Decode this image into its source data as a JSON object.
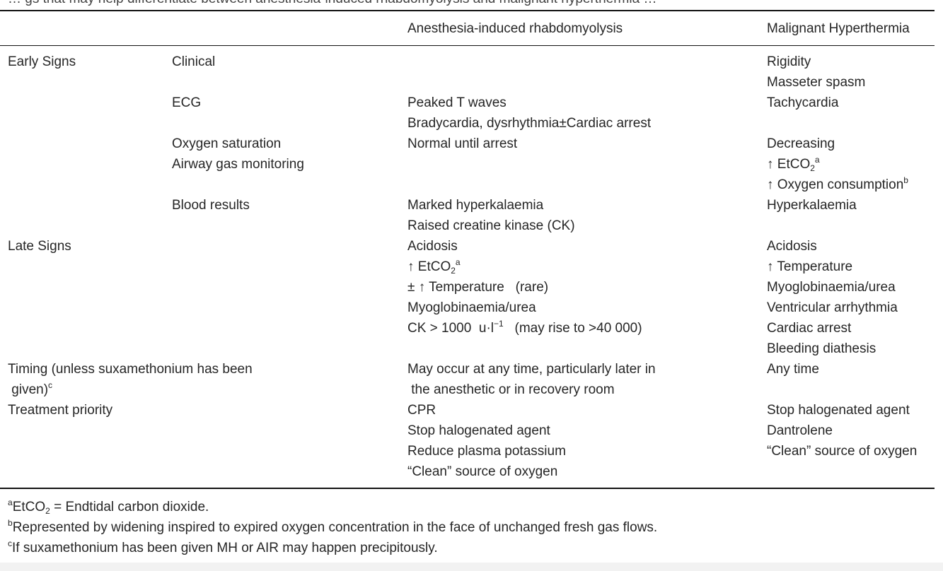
{
  "caption_fragment": "… gs that may help differentiate between anesthesia-induced rhabdomyolysis and malignant hyperthermia …",
  "headers": {
    "col3": "Anesthesia-induced rhabdomyolysis",
    "col4": "Malignant Hyperthermia"
  },
  "rows": {
    "early_signs": "Early Signs",
    "clinical": "Clinical",
    "clinical_mh": [
      "Rigidity",
      "Masseter spasm"
    ],
    "ecg": "ECG",
    "ecg_air": [
      "Peaked T waves",
      "Bradycardia, dysrhythmia±Cardiac arrest"
    ],
    "ecg_mh": "Tachycardia",
    "oxygen_saturation": "Oxygen saturation",
    "oxygen_saturation_air": "Normal until arrest",
    "oxygen_saturation_mh": "Decreasing",
    "airway_gas": "Airway gas monitoring",
    "airway_gas_mh_1_prefix": "↑ EtCO",
    "airway_gas_mh_2": "↑ Oxygen consumption",
    "blood_results": "Blood results",
    "blood_air": [
      "Marked hyperkalaemia",
      "Raised creatine kinase (CK)"
    ],
    "blood_mh": "Hyperkalaemia",
    "late_signs": "Late Signs",
    "late_air_1": "Acidosis",
    "late_air_2_prefix": "↑ EtCO",
    "late_air_3": "± ↑ Temperature   (rare)",
    "late_air_4": "Myoglobinaemia/urea",
    "late_air_5_prefix": "CK > 1000  u·l",
    "late_air_5_suffix": "   (may rise to >40 000)",
    "late_mh": [
      "Acidosis",
      "↑ Temperature",
      "Myoglobinaemia/urea",
      "Ventricular arrhythmia",
      "Cardiac arrest",
      "Bleeding diathesis"
    ],
    "timing_1": "Timing (unless suxamethonium has been",
    "timing_2": " given)",
    "timing_air": [
      "May occur at any time, particularly later in",
      " the anesthetic or in recovery room"
    ],
    "timing_mh": "Any time",
    "treatment": "Treatment priority",
    "treatment_air": [
      "CPR",
      "Stop halogenated agent",
      "Reduce plasma potassium",
      "“Clean” source of oxygen"
    ],
    "treatment_mh": [
      "Stop halogenated agent",
      "Dantrolene",
      "“Clean” source of oxygen"
    ]
  },
  "marks": {
    "a": "a",
    "b": "b",
    "c": "c",
    "two": "2",
    "minus1": "−1"
  },
  "footnotes": {
    "a_text_1": "EtCO",
    "a_text_2": " = Endtidal carbon dioxide.",
    "b_text": "Represented by widening inspired to expired oxygen concentration in the face of unchanged fresh gas flows.",
    "c_text": "If suxamethonium has been given MH or AIR may happen precipitously."
  }
}
